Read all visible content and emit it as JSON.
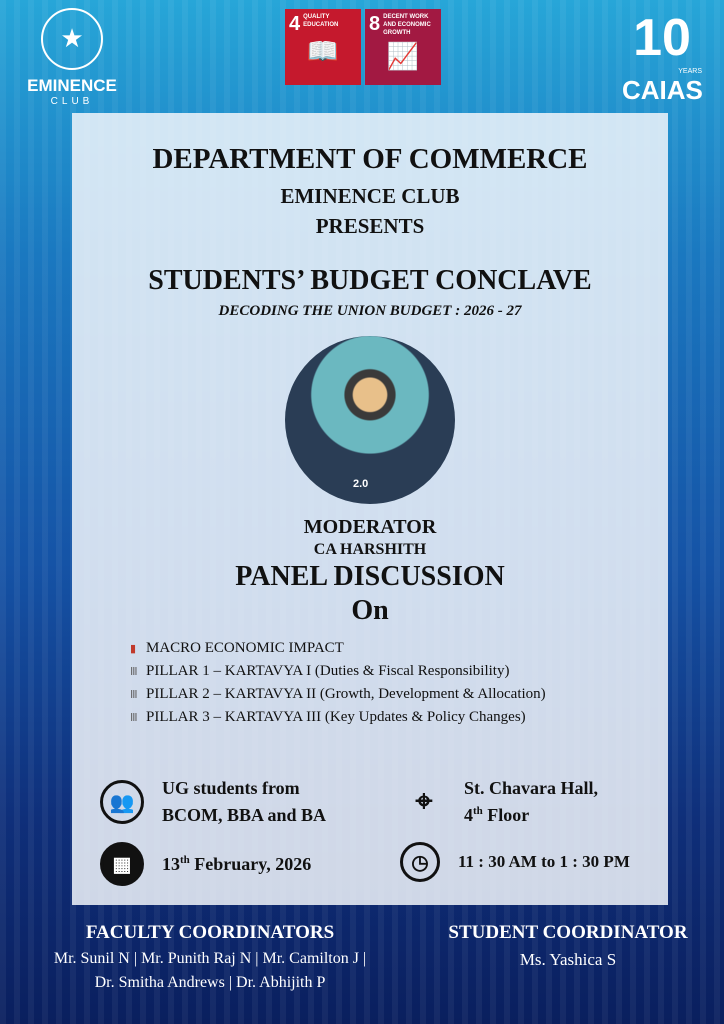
{
  "logos": {
    "left_name": "EMINENCE",
    "left_sub": "CLUB",
    "sdg4_num": "4",
    "sdg4_label": "QUALITY EDUCATION",
    "sdg8_num": "8",
    "sdg8_label": "DECENT WORK AND ECONOMIC GROWTH",
    "right_number": "10",
    "right_years": "YEARS",
    "right_name": "CAIAS",
    "sdg4_color": "#c5192d",
    "sdg8_color": "#a21942"
  },
  "header": {
    "department": "DEPARTMENT OF COMMERCE",
    "club": "EMINENCE CLUB",
    "presents": "PRESENTS",
    "event": "STUDENTS’ BUDGET CONCLAVE",
    "subtitle": "DECODING THE UNION BUDGET : 2026 - 27"
  },
  "photo_badge": "2.0",
  "moderator": {
    "label": "MODERATOR",
    "name": "CA HARSHITH"
  },
  "panel": {
    "title": "PANEL DISCUSSION",
    "on": "On"
  },
  "topics": [
    {
      "icon": "bar-chart-icon",
      "text": "MACRO ECONOMIC IMPACT"
    },
    {
      "icon": "pillar-icon",
      "text": "PILLAR 1 – KARTAVYA I (Duties & Fiscal Responsibility)"
    },
    {
      "icon": "pillar-icon",
      "text": "PILLAR 2 – KARTAVYA II (Growth, Development & Allocation)"
    },
    {
      "icon": "pillar-icon",
      "text": "PILLAR 3 – KARTAVYA III (Key Updates & Policy Changes)"
    }
  ],
  "details": {
    "audience_line1": "UG students from",
    "audience_line2": "BCOM, BBA and BA",
    "venue_line1": "St. Chavara Hall,",
    "venue_floor": "4",
    "venue_floor_sup": "th",
    "venue_floor_rest": " Floor",
    "date_day": "13",
    "date_sup": "th",
    "date_rest": " February, 2026",
    "time": "11 : 30 AM to 1 : 30 PM"
  },
  "footer": {
    "faculty_title": "FACULTY COORDINATORS",
    "faculty_line1": "Mr. Sunil N | Mr. Punith Raj N | Mr. Camilton J |",
    "faculty_line2": "Dr. Smitha Andrews | Dr. Abhijith P",
    "student_title": "STUDENT COORDINATOR",
    "student_name": "Ms. Yashica S"
  }
}
